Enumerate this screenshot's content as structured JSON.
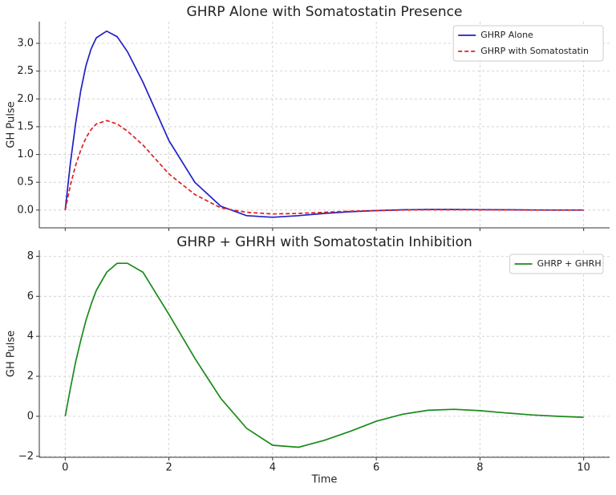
{
  "chart_data": [
    {
      "type": "line",
      "title": "GHRP Alone with Somatostatin Presence",
      "ylabel": "GH Pulse",
      "x": [
        0,
        0.1,
        0.2,
        0.3,
        0.4,
        0.5,
        0.6,
        0.8,
        1.0,
        1.2,
        1.5,
        2,
        2.5,
        3,
        3.5,
        4,
        4.5,
        5,
        5.5,
        6,
        6.5,
        7,
        7.5,
        8,
        8.5,
        9,
        9.5,
        10
      ],
      "series": [
        {
          "name": "GHRP Alone",
          "color": "#2020c8",
          "dash": false,
          "values": [
            0,
            0.85,
            1.55,
            2.15,
            2.6,
            2.9,
            3.1,
            3.22,
            3.12,
            2.85,
            2.3,
            1.25,
            0.5,
            0.07,
            -0.1,
            -0.13,
            -0.1,
            -0.06,
            -0.03,
            -0.01,
            0.005,
            0.01,
            0.01,
            0.008,
            0.005,
            0.002,
            0,
            0
          ]
        },
        {
          "name": "GHRP with Somatostatin",
          "color": "#dd2020",
          "dash": true,
          "values": [
            0,
            0.45,
            0.8,
            1.08,
            1.3,
            1.45,
            1.55,
            1.61,
            1.55,
            1.42,
            1.17,
            0.65,
            0.28,
            0.04,
            -0.04,
            -0.07,
            -0.06,
            -0.04,
            -0.02,
            -0.01,
            0,
            0.005,
            0.005,
            0.004,
            0.003,
            0.001,
            0,
            0
          ]
        }
      ],
      "xlim": [
        -0.5,
        10.5
      ],
      "xticks": [
        0,
        2,
        4,
        6,
        8,
        10
      ],
      "show_xtick_labels": false,
      "ylim": [
        -0.32,
        3.39
      ],
      "yticks": [
        {
          "value": 0,
          "label": "0.0"
        },
        {
          "value": 0.5,
          "label": "0.5"
        },
        {
          "value": 1,
          "label": "1.0"
        },
        {
          "value": 1.5,
          "label": "1.5"
        },
        {
          "value": 2,
          "label": "2.0"
        },
        {
          "value": 2.5,
          "label": "2.5"
        },
        {
          "value": 3,
          "label": "3.0"
        }
      ],
      "grid": true,
      "legend": "upper right"
    },
    {
      "type": "line",
      "title": "GHRP + GHRH with Somatostatin Inhibition",
      "ylabel": "GH Pulse",
      "xlabel": "Time",
      "x": [
        0,
        0.1,
        0.2,
        0.3,
        0.4,
        0.5,
        0.6,
        0.8,
        1.0,
        1.2,
        1.5,
        2,
        2.5,
        3,
        3.5,
        4,
        4.5,
        5,
        5.5,
        6,
        6.5,
        7,
        7.5,
        8,
        8.5,
        9,
        9.5,
        10
      ],
      "series": [
        {
          "name": "GHRP + GHRH",
          "color": "#1a8a1a",
          "dash": false,
          "values": [
            0,
            1.4,
            2.7,
            3.8,
            4.8,
            5.6,
            6.3,
            7.2,
            7.65,
            7.65,
            7.2,
            5.1,
            2.9,
            0.9,
            -0.6,
            -1.45,
            -1.55,
            -1.2,
            -0.75,
            -0.25,
            0.1,
            0.3,
            0.35,
            0.28,
            0.17,
            0.07,
            0,
            -0.05
          ]
        }
      ],
      "xlim": [
        -0.5,
        10.5
      ],
      "xticks": [
        0,
        2,
        4,
        6,
        8,
        10
      ],
      "show_xtick_labels": true,
      "ylim": [
        -2.05,
        8.3
      ],
      "yticks": [
        {
          "value": -2,
          "label": "−2"
        },
        0,
        2,
        4,
        6,
        8
      ],
      "grid": true,
      "legend": "upper right"
    }
  ]
}
